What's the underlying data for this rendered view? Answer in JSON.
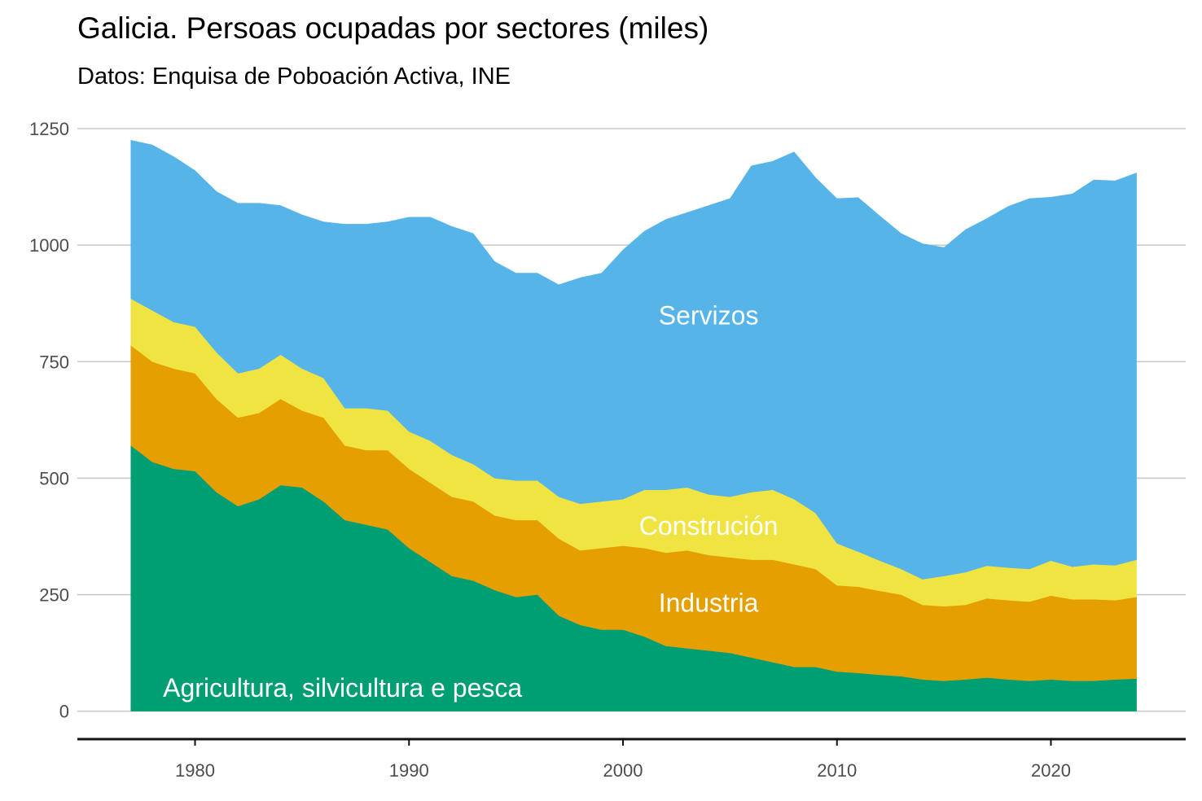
{
  "chart_data": {
    "type": "area",
    "stacked": true,
    "title": "Galicia. Persoas ocupadas por sectores (miles)",
    "subtitle": "Datos: Enquisa de Poboación Activa, INE",
    "xlim": [
      1974.5,
      2026.3
    ],
    "ylim": [
      -60,
      1250
    ],
    "x_ticks": [
      1980,
      1990,
      2000,
      2010,
      2020
    ],
    "y_ticks": [
      0,
      250,
      500,
      750,
      1000,
      1250
    ],
    "grid": "horizontal",
    "x": [
      1977,
      1978,
      1979,
      1980,
      1981,
      1982,
      1983,
      1984,
      1985,
      1986,
      1987,
      1988,
      1989,
      1990,
      1991,
      1992,
      1993,
      1994,
      1995,
      1996,
      1997,
      1998,
      1999,
      2000,
      2001,
      2002,
      2003,
      2004,
      2005,
      2006,
      2007,
      2008,
      2009,
      2010,
      2011,
      2012,
      2013,
      2014,
      2015,
      2016,
      2017,
      2018,
      2019,
      2020,
      2021,
      2022,
      2023,
      2024
    ],
    "series": [
      {
        "name": "Agricultura, silvicultura e pesca",
        "color": "#009e73",
        "values": [
          570,
          535,
          520,
          515,
          470,
          440,
          455,
          485,
          480,
          450,
          410,
          400,
          390,
          350,
          320,
          290,
          280,
          260,
          245,
          250,
          205,
          185,
          175,
          175,
          160,
          140,
          135,
          130,
          125,
          115,
          105,
          95,
          95,
          85,
          82,
          78,
          75,
          68,
          65,
          68,
          72,
          68,
          65,
          68,
          65,
          65,
          68,
          70
        ]
      },
      {
        "name": "Industria",
        "color": "#e69f00",
        "values": [
          215,
          215,
          215,
          210,
          200,
          190,
          185,
          185,
          165,
          180,
          160,
          160,
          170,
          170,
          170,
          170,
          170,
          160,
          165,
          160,
          165,
          160,
          175,
          180,
          190,
          200,
          210,
          205,
          205,
          210,
          220,
          220,
          210,
          185,
          185,
          180,
          175,
          160,
          160,
          160,
          170,
          170,
          170,
          180,
          175,
          175,
          170,
          175
        ]
      },
      {
        "name": "Construción",
        "color": "#f0e442",
        "values": [
          100,
          110,
          100,
          100,
          100,
          95,
          95,
          95,
          90,
          85,
          80,
          90,
          85,
          80,
          90,
          90,
          80,
          80,
          85,
          85,
          90,
          100,
          100,
          100,
          125,
          135,
          135,
          130,
          130,
          145,
          150,
          140,
          120,
          90,
          75,
          65,
          55,
          55,
          65,
          70,
          70,
          70,
          70,
          75,
          70,
          75,
          75,
          80
        ]
      },
      {
        "name": "Servizos",
        "color": "#56b4e9",
        "values": [
          340,
          355,
          355,
          335,
          345,
          365,
          355,
          320,
          330,
          335,
          395,
          395,
          405,
          460,
          480,
          490,
          495,
          465,
          445,
          445,
          455,
          485,
          490,
          535,
          555,
          580,
          590,
          620,
          640,
          700,
          705,
          745,
          720,
          740,
          760,
          740,
          720,
          720,
          705,
          735,
          745,
          775,
          795,
          780,
          800,
          825,
          825,
          830
        ]
      }
    ]
  }
}
